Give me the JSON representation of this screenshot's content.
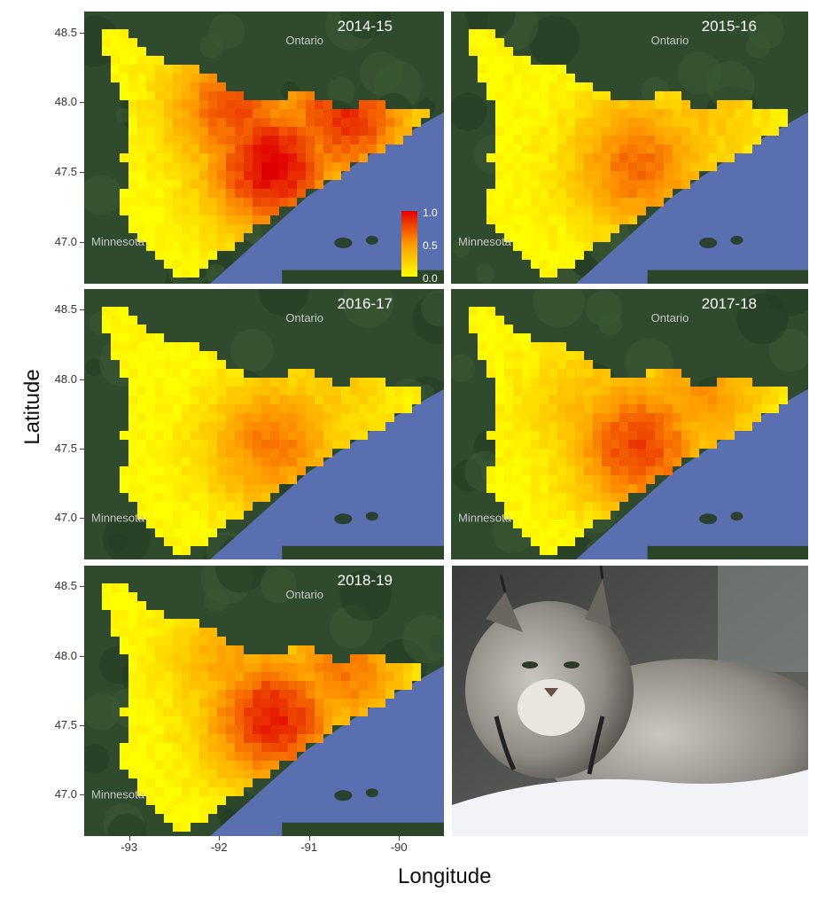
{
  "chart_data": [
    {
      "type": "heatmap",
      "title": "2014-15",
      "colorbar": {
        "labels": [
          "1.0",
          "0.5",
          "0.0"
        ]
      },
      "map_labels": [
        "Ontario",
        "Minnesota"
      ],
      "hotspots": [
        {
          "lon": -91.4,
          "lat": 47.55,
          "value": 1.0
        },
        {
          "lon": -90.6,
          "lat": 47.9,
          "value": 0.85
        },
        {
          "lon": -91.8,
          "lat": 47.95,
          "value": 0.75
        }
      ]
    },
    {
      "type": "heatmap",
      "title": "2015-16",
      "map_labels": [
        "Ontario",
        "Minnesota"
      ],
      "hotspots": [
        {
          "lon": -91.4,
          "lat": 47.55,
          "value": 0.65
        },
        {
          "lon": -90.7,
          "lat": 47.9,
          "value": 0.3
        }
      ]
    },
    {
      "type": "heatmap",
      "title": "2016-17",
      "map_labels": [
        "Ontario",
        "Minnesota"
      ],
      "hotspots": [
        {
          "lon": -91.4,
          "lat": 47.52,
          "value": 0.6
        },
        {
          "lon": -90.7,
          "lat": 47.9,
          "value": 0.25
        }
      ]
    },
    {
      "type": "heatmap",
      "title": "2017-18",
      "map_labels": [
        "Ontario",
        "Minnesota"
      ],
      "hotspots": [
        {
          "lon": -91.4,
          "lat": 47.52,
          "value": 0.8
        },
        {
          "lon": -90.7,
          "lat": 47.9,
          "value": 0.5
        },
        {
          "lon": -91.9,
          "lat": 47.8,
          "value": 0.35
        }
      ]
    },
    {
      "type": "heatmap",
      "title": "2018-19",
      "map_labels": [
        "Ontario",
        "Minnesota"
      ],
      "hotspots": [
        {
          "lon": -91.4,
          "lat": 47.55,
          "value": 0.9
        },
        {
          "lon": -90.6,
          "lat": 47.9,
          "value": 0.6
        },
        {
          "lon": -91.8,
          "lat": 47.95,
          "value": 0.45
        }
      ]
    }
  ],
  "axes": {
    "xlabel": "Longitude",
    "ylabel": "Latitude",
    "xticks": [
      "-93",
      "-92",
      "-91",
      "-90"
    ],
    "yticks": [
      "48.5",
      "48.0",
      "47.5",
      "47.0"
    ],
    "xlim": [
      -93.5,
      -89.5
    ],
    "ylim": [
      46.7,
      48.65
    ]
  },
  "colors": {
    "low": "#ffff00",
    "mid": "#ff9900",
    "high": "#e00000",
    "lake": "#5a6fb0",
    "land": "#2f4a2c"
  }
}
